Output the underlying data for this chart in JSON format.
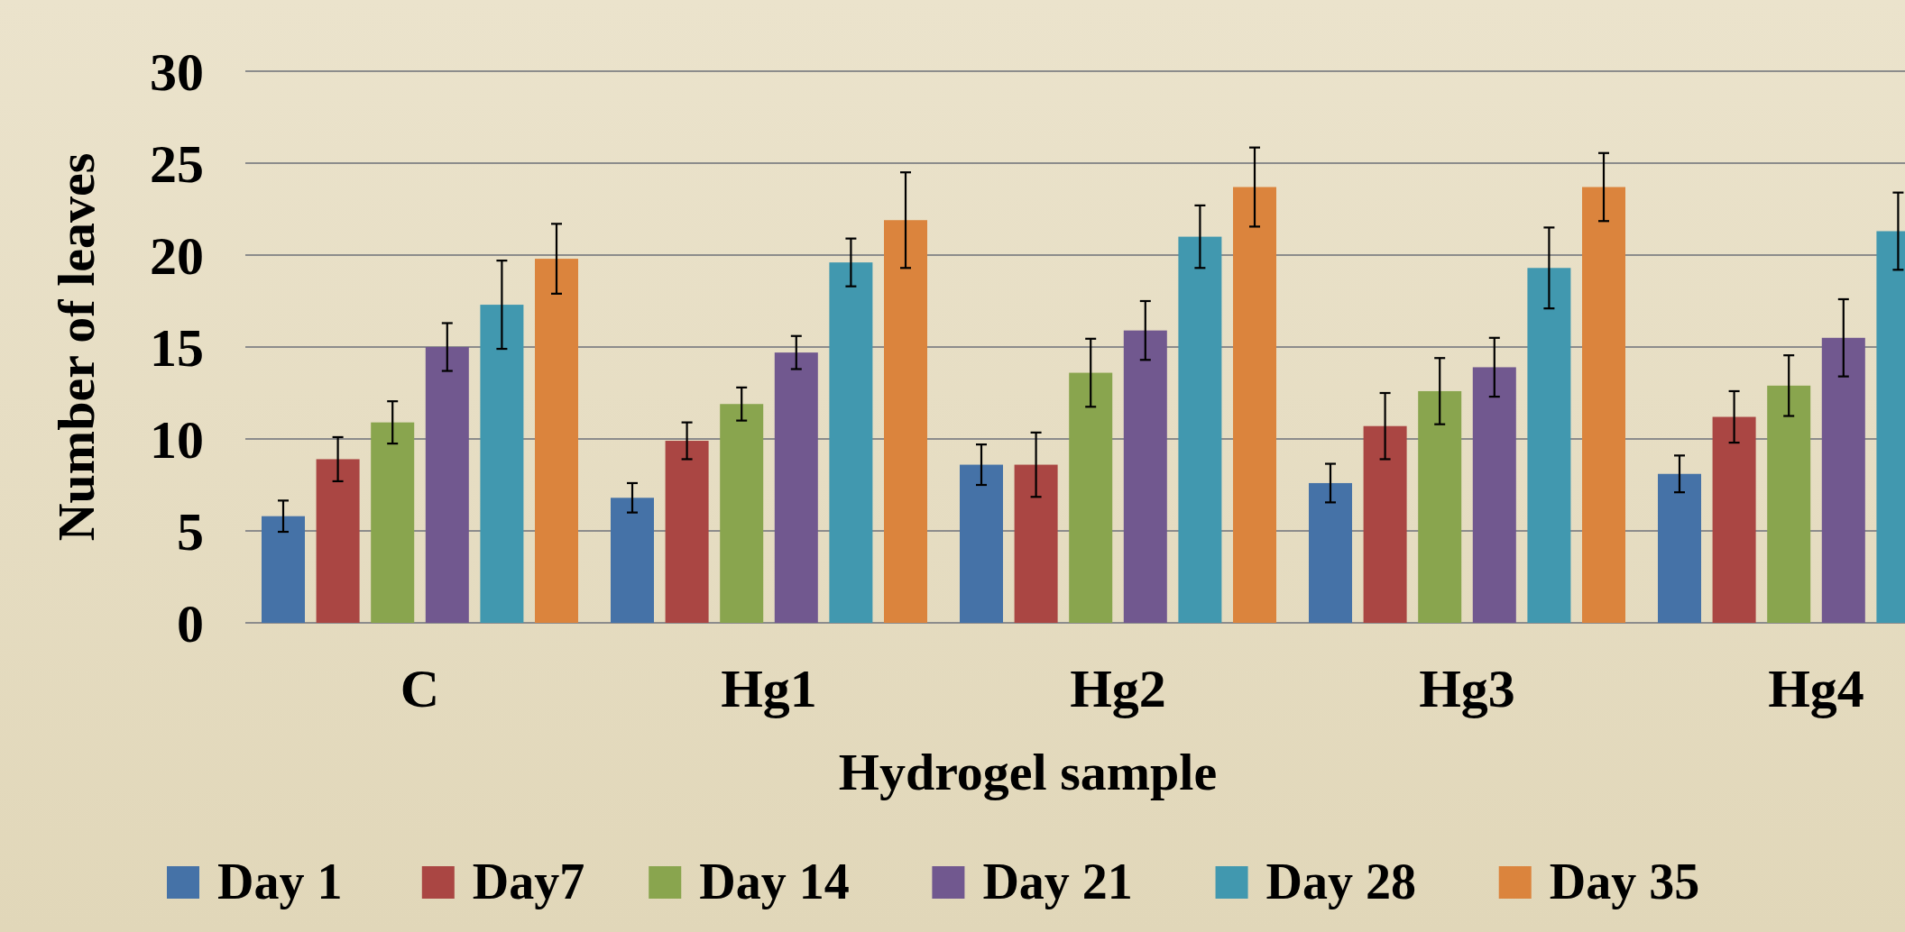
{
  "chart_data": {
    "type": "bar",
    "xlabel": "Hydrogel sample",
    "ylabel": "Number of leaves",
    "categories": [
      "C",
      "Hg1",
      "Hg2",
      "Hg3",
      "Hg4"
    ],
    "ylim": [
      0,
      30
    ],
    "yticks": [
      0,
      5,
      10,
      15,
      20,
      25,
      30
    ],
    "grid": "y",
    "legend": "bottom",
    "series": [
      {
        "name": "Day 1",
        "color": "#4572a7",
        "values": [
          5.8,
          6.8,
          8.6,
          7.6,
          8.1
        ],
        "errors": [
          0.85,
          0.8,
          1.1,
          1.05,
          1.0
        ]
      },
      {
        "name": "Day7",
        "color": "#aa4643",
        "values": [
          8.9,
          9.9,
          8.6,
          10.7,
          11.2
        ],
        "errors": [
          1.2,
          1.0,
          1.75,
          1.8,
          1.4
        ]
      },
      {
        "name": "Day 14",
        "color": "#89a54e",
        "values": [
          10.9,
          11.9,
          13.6,
          12.6,
          12.9
        ],
        "errors": [
          1.15,
          0.9,
          1.85,
          1.8,
          1.65
        ]
      },
      {
        "name": "Day 21",
        "color": "#71588f",
        "values": [
          15.0,
          14.7,
          15.9,
          13.9,
          15.5
        ],
        "errors": [
          1.3,
          0.9,
          1.6,
          1.6,
          2.1
        ]
      },
      {
        "name": "Day 28",
        "color": "#4198af",
        "values": [
          17.3,
          19.6,
          21.0,
          19.3,
          21.3
        ],
        "errors": [
          2.4,
          1.3,
          1.7,
          2.2,
          2.1
        ]
      },
      {
        "name": "Day 35",
        "color": "#db843d",
        "values": [
          19.8,
          21.9,
          23.7,
          23.7,
          null
        ],
        "errors": [
          1.9,
          2.6,
          2.15,
          1.85,
          null
        ]
      }
    ]
  }
}
